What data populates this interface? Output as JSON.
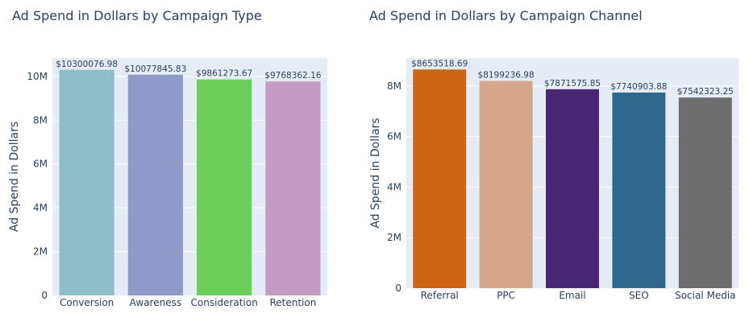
{
  "chart_data": [
    {
      "type": "bar",
      "title": "Ad Spend in Dollars by Campaign Type",
      "xlabel": "",
      "ylabel": "Ad Spend in Dollars",
      "categories": [
        "Conversion",
        "Awareness",
        "Consideration",
        "Retention"
      ],
      "values": [
        10300076.98,
        10077845.83,
        9861273.67,
        9768362.16
      ],
      "value_labels": [
        "$10300076.98",
        "$10077845.83",
        "$9861273.67",
        "$9768362.16"
      ],
      "colors": [
        "#8fbdca",
        "#8f9ac8",
        "#6dcf5b",
        "#c49bc2"
      ],
      "ylim": [
        0,
        10842186.3
      ],
      "yticks": [
        0,
        2000000,
        4000000,
        6000000,
        8000000,
        10000000
      ],
      "ytick_labels": [
        "0",
        "2M",
        "4M",
        "6M",
        "8M",
        "10M"
      ],
      "grid": true,
      "background": "#e5ecf6"
    },
    {
      "type": "bar",
      "title": "Ad Spend in Dollars by Campaign Channel",
      "xlabel": "",
      "ylabel": "Ad Spend in Dollars",
      "categories": [
        "Referral",
        "PPC",
        "Email",
        "SEO",
        "Social Media"
      ],
      "values": [
        8653518.69,
        8199236.98,
        7871575.85,
        7740903.88,
        7542323.25
      ],
      "value_labels": [
        "$8653518.69",
        "$8199236.98",
        "$7871575.85",
        "$7740903.88",
        "$7542323.25"
      ],
      "colors": [
        "#cc6616",
        "#d4a68b",
        "#482673",
        "#2e688e",
        "#6e6e6e"
      ],
      "ylim": [
        0,
        9108967.04
      ],
      "yticks": [
        0,
        2000000,
        4000000,
        6000000,
        8000000
      ],
      "ytick_labels": [
        "0",
        "2M",
        "4M",
        "6M",
        "8M"
      ],
      "grid": true,
      "background": "#e5ecf6"
    }
  ]
}
